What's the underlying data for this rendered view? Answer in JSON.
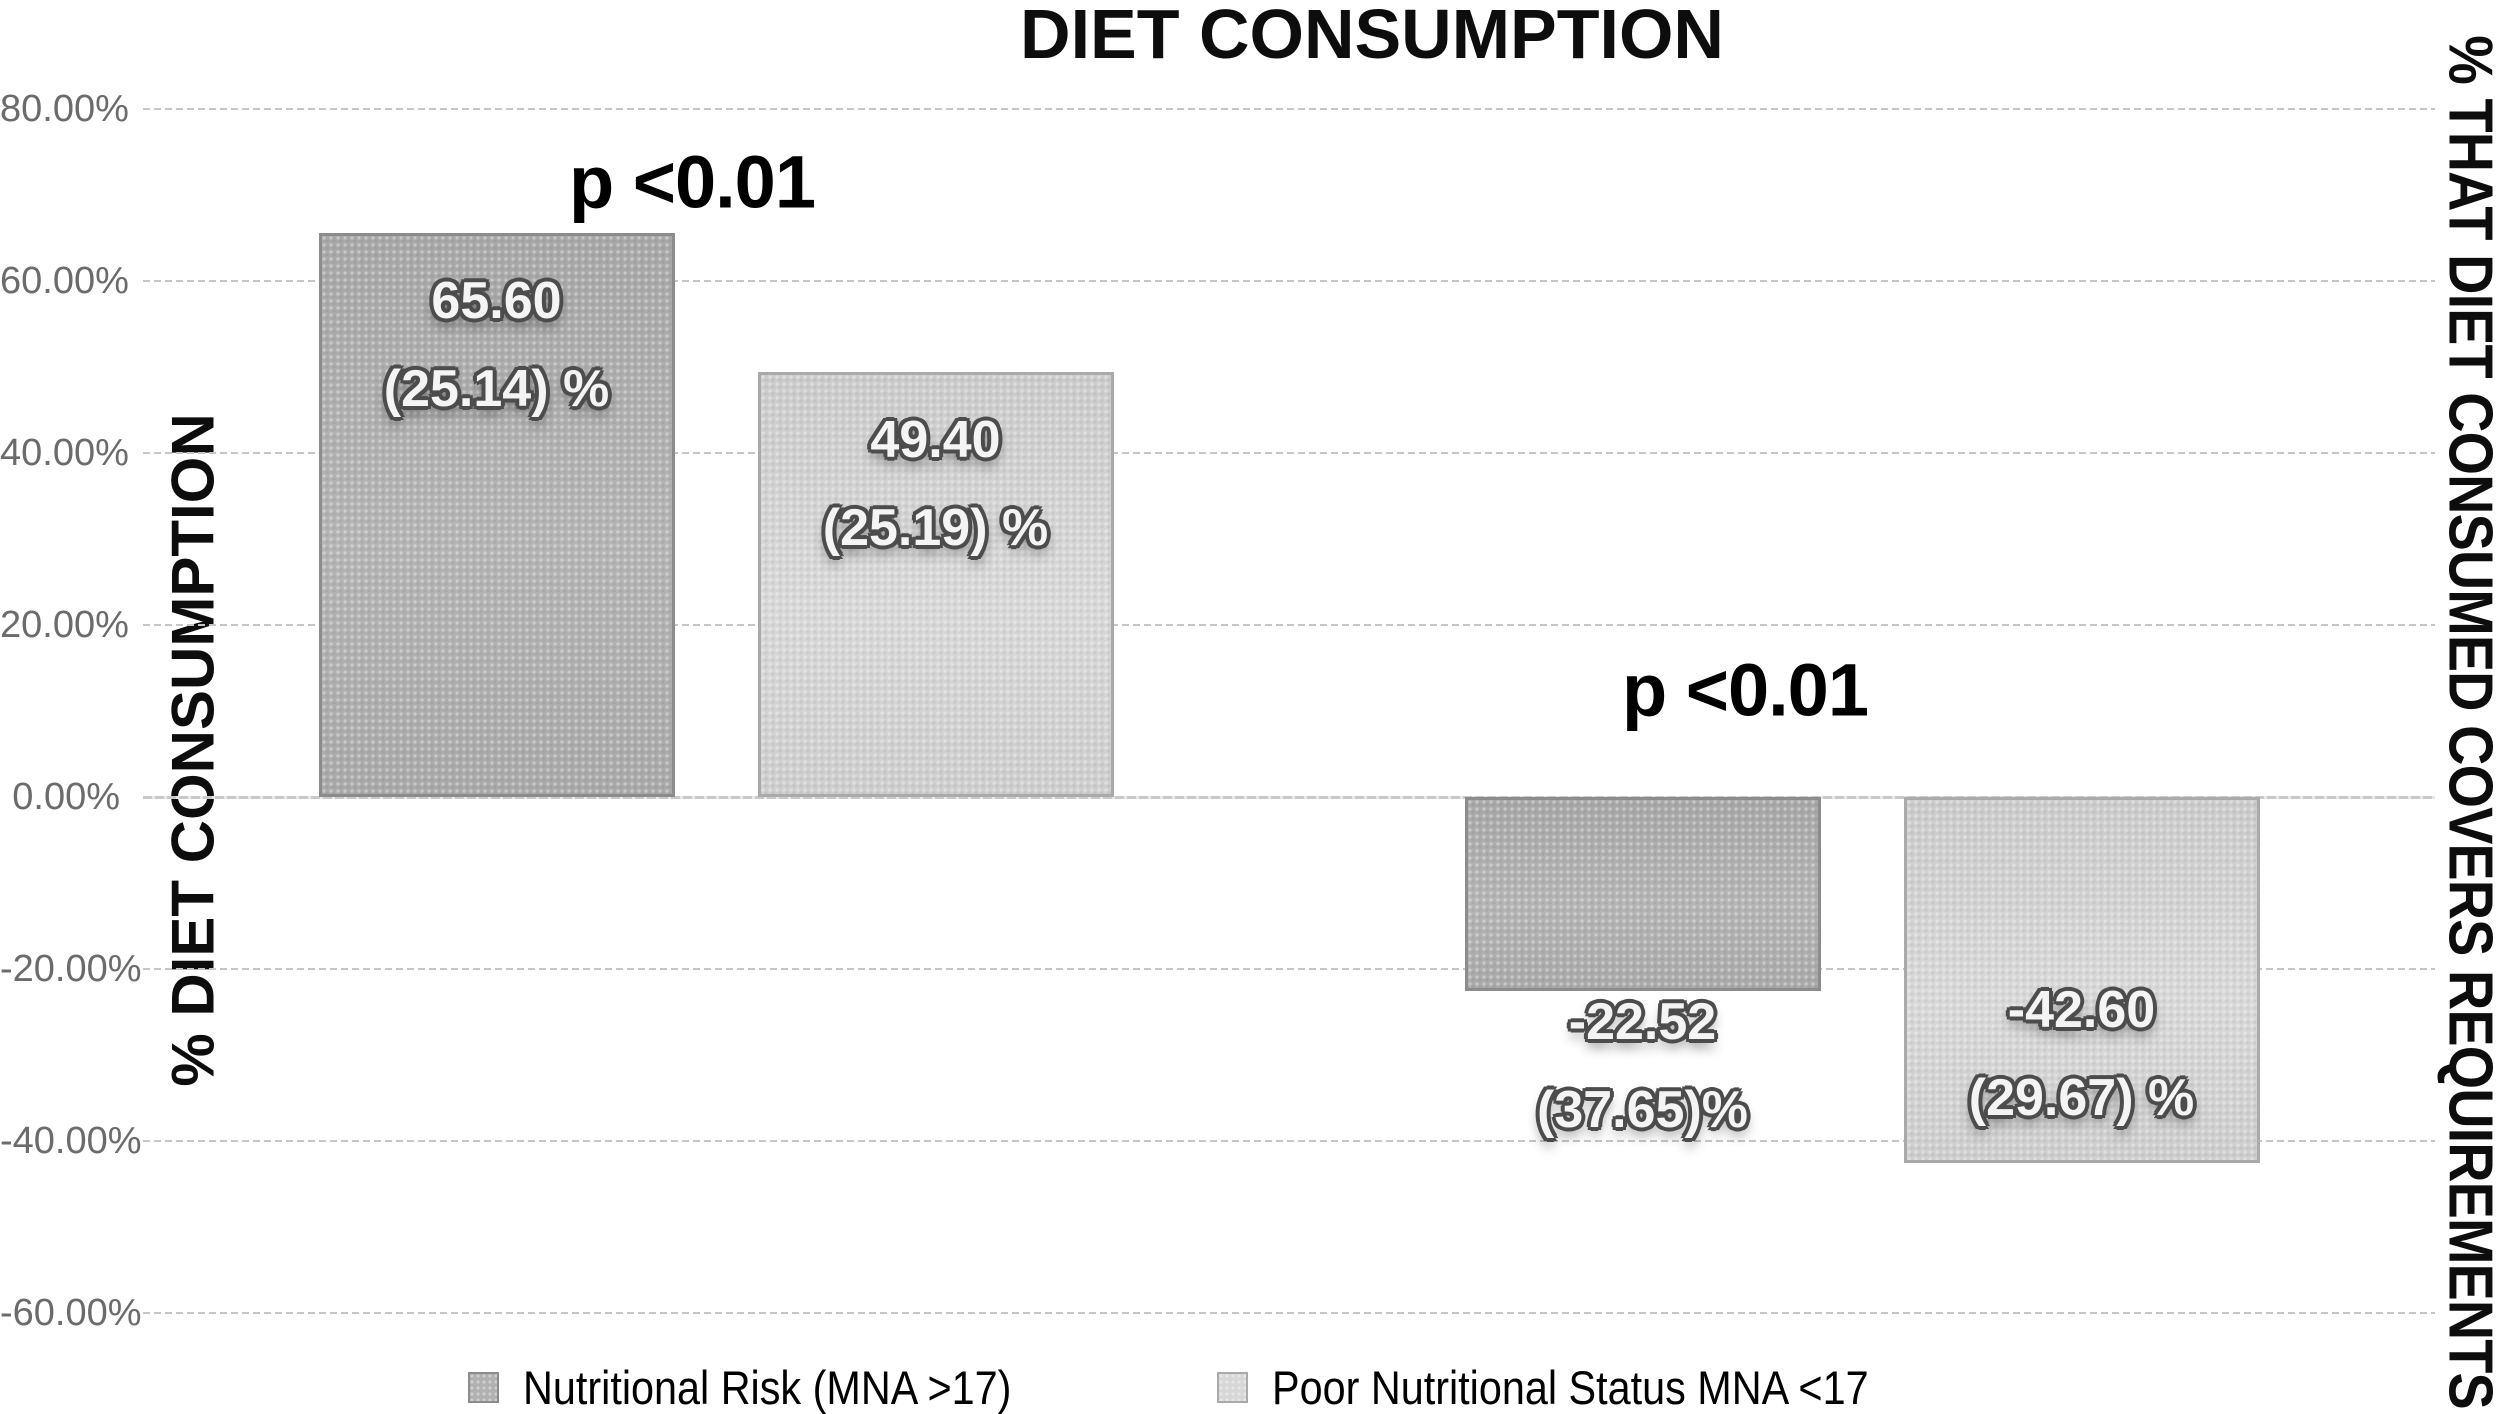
{
  "chart_data": {
    "type": "bar",
    "title": "DIET CONSUMPTION",
    "ylabel_left": "% DIET CONSUMPTION",
    "ylabel_right": "% THAT DIET CONSUMED COVERS REQUIREMENTS",
    "ylim": [
      -60,
      80
    ],
    "grid": true,
    "legend_position": "bottom",
    "yticks": [
      {
        "value": 80,
        "label": "80.00%"
      },
      {
        "value": 60,
        "label": "60.00%"
      },
      {
        "value": 40,
        "label": "40.00%"
      },
      {
        "value": 20,
        "label": "20.00%"
      },
      {
        "value": 0,
        "label": "0.00%"
      },
      {
        "value": -20,
        "label": "-20.00%"
      },
      {
        "value": -40,
        "label": "-40.00%"
      },
      {
        "value": -60,
        "label": "-60.00%"
      }
    ],
    "series": [
      {
        "name": "Nutritional Risk (MNA >17)",
        "fill": "#b1b1b1",
        "border": "#8c8c8c"
      },
      {
        "name": "Poor Nutritional Status MNA <17",
        "fill": "#d7d7d7",
        "border": "#aaaaaa"
      }
    ],
    "groups": [
      {
        "annotation": "p <0.01",
        "bars": [
          {
            "series_index": 0,
            "mean": 65.6,
            "sd": 25.14,
            "label_lines": [
              "65.60",
              "(25.14) %"
            ]
          },
          {
            "series_index": 1,
            "mean": 49.4,
            "sd": 25.19,
            "label_lines": [
              "49.40",
              "(25.19) %"
            ]
          }
        ]
      },
      {
        "annotation": "p <0.01",
        "bars": [
          {
            "series_index": 0,
            "mean": -22.52,
            "sd": 37.65,
            "label_lines": [
              "-22.52",
              "(37.65)%"
            ]
          },
          {
            "series_index": 1,
            "mean": -42.6,
            "sd": 29.67,
            "label_lines": [
              "-42.60",
              "(29.67) %"
            ]
          }
        ]
      }
    ]
  }
}
